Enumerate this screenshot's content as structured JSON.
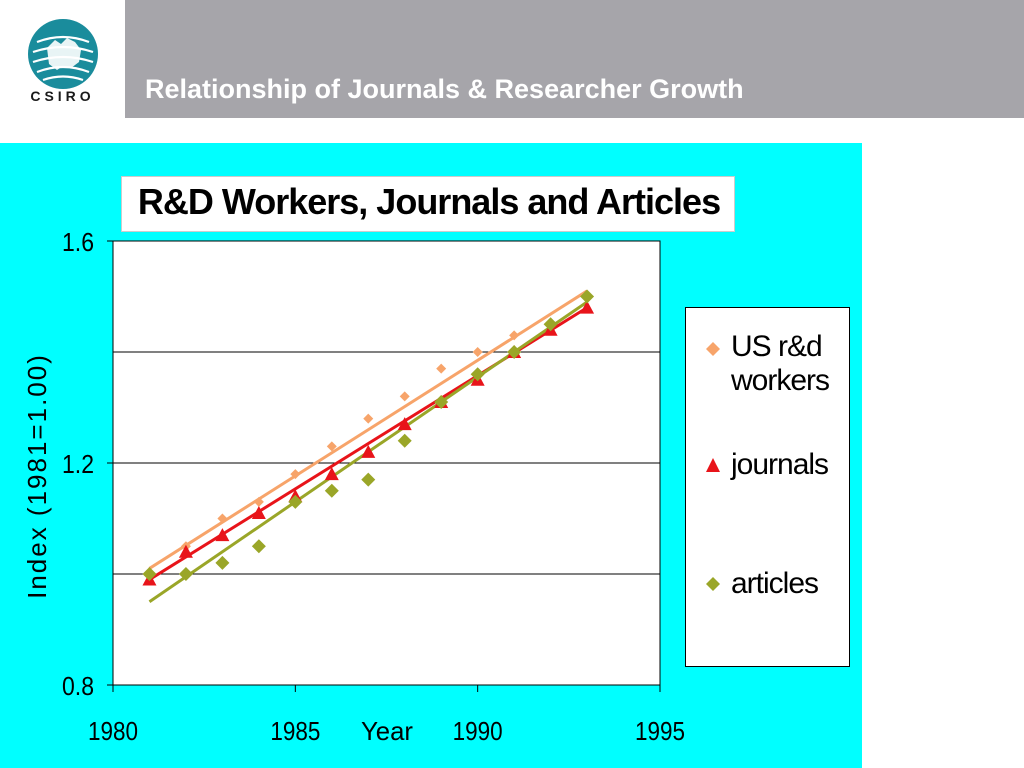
{
  "header": {
    "logo_text": "CSIRO",
    "title": "Relationship of Journals & Researcher Growth"
  },
  "colors": {
    "header_bar": "#a6a5aa",
    "panel": "#00ffff",
    "logo_teal": "#1a8c9c",
    "workers": "#f7a46a",
    "journals": "#e8141a",
    "articles": "#9aa628"
  },
  "chart_data": {
    "type": "scatter",
    "title": "R&D Workers, Journals and Articles",
    "xlabel": "Year",
    "ylabel": "Index (1981=1.00)",
    "xlim": [
      1980,
      1995
    ],
    "ylim": [
      0.8,
      1.6
    ],
    "x_ticks": [
      "1980",
      "1985",
      "1990",
      "1995"
    ],
    "y_ticks": [
      "0.8",
      "1.2",
      "1.6"
    ],
    "y_gridlines": [
      1.0,
      1.2,
      1.4
    ],
    "legend_position": "right",
    "series": [
      {
        "name": "US r&d workers",
        "marker": "diamond",
        "color": "#f7a46a",
        "x": [
          1981,
          1982,
          1983,
          1984,
          1985,
          1986,
          1987,
          1988,
          1989,
          1990,
          1991,
          1992,
          1993
        ],
        "y": [
          1.0,
          1.05,
          1.1,
          1.13,
          1.18,
          1.23,
          1.28,
          1.32,
          1.37,
          1.4,
          1.43,
          1.45,
          1.5
        ],
        "trend": [
          [
            1981,
            1.01
          ],
          [
            1993,
            1.51
          ]
        ]
      },
      {
        "name": "journals",
        "marker": "triangle",
        "color": "#e8141a",
        "x": [
          1981,
          1982,
          1983,
          1984,
          1985,
          1986,
          1987,
          1988,
          1989,
          1990,
          1991,
          1992,
          1993
        ],
        "y": [
          0.99,
          1.04,
          1.07,
          1.11,
          1.14,
          1.18,
          1.22,
          1.27,
          1.31,
          1.35,
          1.4,
          1.44,
          1.48
        ],
        "trend": [
          [
            1981,
            0.99
          ],
          [
            1993,
            1.48
          ]
        ]
      },
      {
        "name": "articles",
        "marker": "diamond",
        "color": "#9aa628",
        "x": [
          1981,
          1982,
          1983,
          1984,
          1985,
          1986,
          1987,
          1988,
          1989,
          1990,
          1991,
          1992,
          1993
        ],
        "y": [
          1.0,
          1.0,
          1.02,
          1.05,
          1.13,
          1.15,
          1.17,
          1.24,
          1.31,
          1.36,
          1.4,
          1.45,
          1.5
        ],
        "trend": [
          [
            1981,
            0.95
          ],
          [
            1993,
            1.49
          ]
        ]
      }
    ]
  },
  "legend": {
    "items": [
      {
        "line1": "US r&d",
        "line2": "workers"
      },
      {
        "line1": "journals",
        "line2": ""
      },
      {
        "line1": "articles",
        "line2": ""
      }
    ]
  }
}
